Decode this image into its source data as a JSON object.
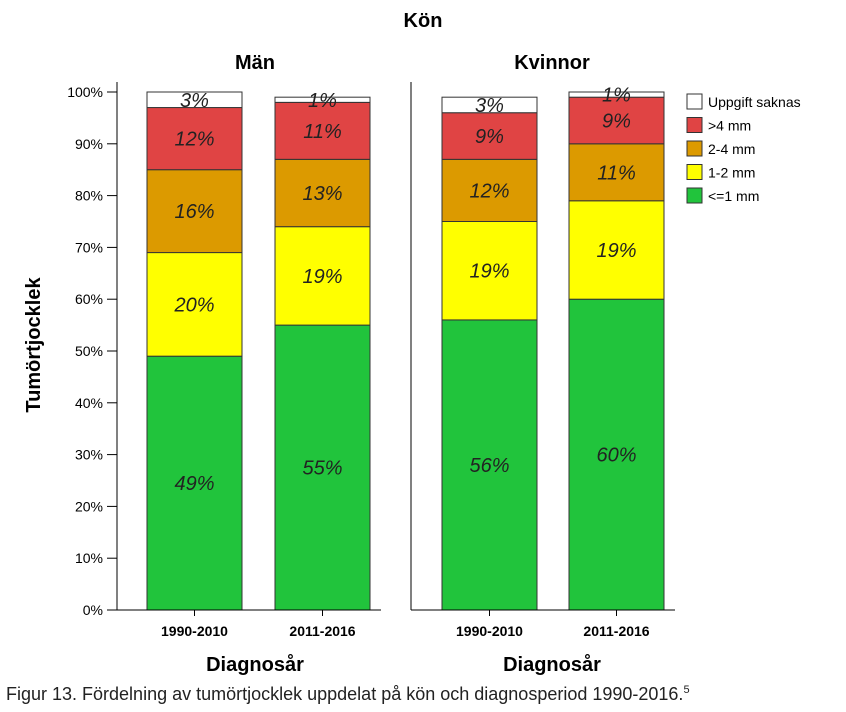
{
  "chart_data": {
    "type": "bar",
    "stacked": true,
    "title": "Kön",
    "ylabel": "Tumörtjocklek",
    "xlabel": "Diagnosår",
    "ylim": [
      0,
      100
    ],
    "y_ticks": [
      "0%",
      "10%",
      "20%",
      "30%",
      "40%",
      "50%",
      "60%",
      "70%",
      "80%",
      "90%",
      "100%"
    ],
    "categories": [
      "1990-2010",
      "2011-2016"
    ],
    "legend": {
      "placement": "top-right",
      "entries": [
        "Uppgift saknas",
        ">4 mm",
        "2-4 mm",
        "1-2 mm",
        "<=1 mm"
      ]
    },
    "series_colors": {
      "<=1 mm": "#21c43c",
      "1-2 mm": "#ffff00",
      "2-4 mm": "#dc9a00",
      ">4 mm": "#e04444",
      "Uppgift saknas": "#ffffff"
    },
    "panels": [
      {
        "title": "Män",
        "series": [
          {
            "name": "<=1 mm",
            "values": [
              49,
              55
            ],
            "labels": [
              "49%",
              "55%"
            ]
          },
          {
            "name": "1-2 mm",
            "values": [
              20,
              19
            ],
            "labels": [
              "20%",
              "19%"
            ]
          },
          {
            "name": "2-4 mm",
            "values": [
              16,
              13
            ],
            "labels": [
              "16%",
              "13%"
            ]
          },
          {
            "name": ">4 mm",
            "values": [
              12,
              11
            ],
            "labels": [
              "12%",
              "11%"
            ]
          },
          {
            "name": "Uppgift saknas",
            "values": [
              3,
              1
            ],
            "labels": [
              "3%",
              "1%"
            ]
          }
        ]
      },
      {
        "title": "Kvinnor",
        "series": [
          {
            "name": "<=1 mm",
            "values": [
              56,
              60
            ],
            "labels": [
              "56%",
              "60%"
            ]
          },
          {
            "name": "1-2 mm",
            "values": [
              19,
              19
            ],
            "labels": [
              "19%",
              "19%"
            ]
          },
          {
            "name": "2-4 mm",
            "values": [
              12,
              11
            ],
            "labels": [
              "12%",
              "11%"
            ]
          },
          {
            "name": ">4 mm",
            "values": [
              9,
              9
            ],
            "labels": [
              "9%",
              "9%"
            ]
          },
          {
            "name": "Uppgift saknas",
            "values": [
              3,
              1
            ],
            "labels": [
              "3%",
              "1%"
            ]
          }
        ]
      }
    ]
  },
  "caption": {
    "text": "Figur 13. Fördelning av tumörtjocklek uppdelat på kön och diagnosperiod 1990-2016.",
    "superscript": "5"
  }
}
